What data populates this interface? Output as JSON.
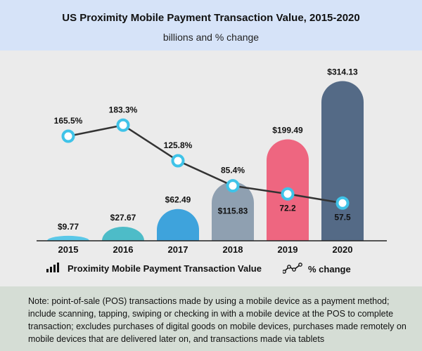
{
  "header": {
    "title": "US Proximity Mobile Payment Transaction Value, 2015-2020",
    "subtitle": "billions and % change"
  },
  "chart_data": {
    "type": "bar",
    "title": "US Proximity Mobile Payment Transaction Value, 2015-2020",
    "subtitle": "billions and % change",
    "categories": [
      "2015",
      "2016",
      "2017",
      "2018",
      "2019",
      "2020"
    ],
    "series": [
      {
        "name": "Proximity Mobile Payment Transaction Value",
        "type": "bar",
        "values": [
          9.77,
          27.67,
          62.49,
          115.83,
          199.49,
          314.13
        ],
        "labels": [
          "$9.77",
          "$27.67",
          "$62.49",
          "$115.83",
          "$199.49",
          "$314.13"
        ],
        "colors": [
          "#5bc8e8",
          "#4dbcc8",
          "#3ea3dc",
          "#8fa0b1",
          "#ee6680",
          "#546a86"
        ]
      },
      {
        "name": "% change",
        "type": "line",
        "values": [
          165.5,
          183.3,
          125.8,
          85.4,
          72.2,
          57.5
        ],
        "labels": [
          "165.5%",
          "183.3%",
          "125.8%",
          "85.4%",
          "72.2",
          "57.5"
        ]
      }
    ],
    "ylim": [
      0,
      330
    ],
    "y2lim": [
      0,
      260
    ],
    "grid": false,
    "legend": "bottom"
  },
  "legend": {
    "bar_label": "Proximity Mobile Payment Transaction Value",
    "line_label": "% change"
  },
  "note": {
    "text": "Note: point-of-sale (POS) transactions made by using a mobile device as a payment method; include scanning, tapping, swiping or checking in with a mobile device at the POS to complete transaction; excludes purchases of digital goods on mobile devices, purchases made remotely on mobile devices that are delivered later on, and transactions made via tablets"
  },
  "colors": {
    "header_bg": "#d6e3f8",
    "chart_bg": "#ebebeb",
    "note_bg": "#d5ddd5",
    "line": "#333333",
    "marker": "#3fc3e8"
  }
}
